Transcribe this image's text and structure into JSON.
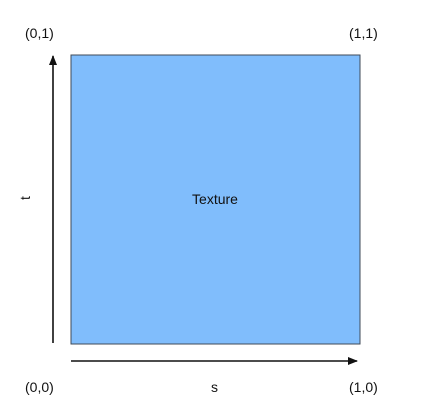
{
  "corners": {
    "top_left": "(0,1)",
    "top_right": "(1,1)",
    "bottom_left": "(0,0)",
    "bottom_right": "(1,0)"
  },
  "axes": {
    "horizontal": "s",
    "vertical": "t"
  },
  "texture": {
    "label": "Texture",
    "fill_color": "#80bdfc",
    "border_color": "#3f4a57"
  },
  "arrow_color": "#111111"
}
